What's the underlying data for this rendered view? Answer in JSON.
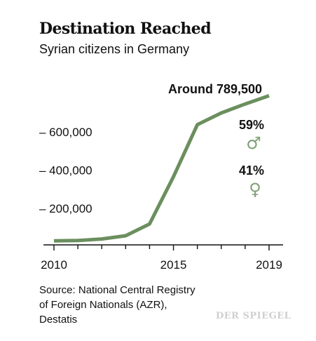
{
  "title": "Destination Reached",
  "subtitle": "Syrian citizens in Germany",
  "annotations": {
    "peak": "Around 789,500",
    "male_share": "59%",
    "female_share": "41%",
    "male_icon": "male-symbol-icon",
    "female_icon": "female-symbol-icon"
  },
  "source_lines": [
    "Source: National Central Registry",
    "of Foreign Nationals (AZR),",
    "Destatis"
  ],
  "logo": "DER SPIEGEL",
  "colors": {
    "line": "#6b8f5e",
    "symbol": "#7fa076",
    "axis": "#111111"
  },
  "chart_data": {
    "type": "line",
    "title": "Destination Reached",
    "subtitle": "Syrian citizens in Germany",
    "x": [
      2010,
      2011,
      2012,
      2013,
      2014,
      2015,
      2016,
      2017,
      2018,
      2019
    ],
    "series": [
      {
        "values": [
          30000,
          32000,
          40000,
          57000,
          118000,
          366000,
          638000,
          699000,
          746000,
          789500
        ]
      }
    ],
    "xlim": [
      2010,
      2019
    ],
    "ylim": [
      0,
      820000
    ],
    "y_ticks": [
      200000,
      400000,
      600000
    ],
    "y_tick_labels": [
      "– 200,000",
      "– 400,000",
      "– 600,000"
    ],
    "x_tick_labels": [
      "2010",
      "2015",
      "2019"
    ],
    "x_tick_label_years": [
      2010,
      2015,
      2019
    ],
    "grid": false,
    "legend": "none"
  }
}
